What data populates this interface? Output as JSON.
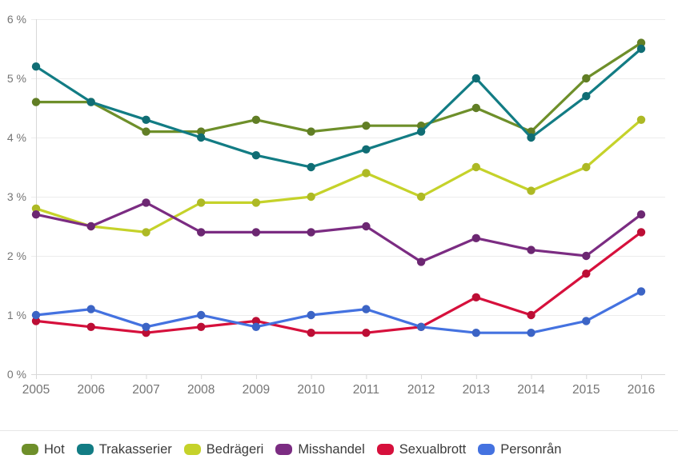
{
  "chart_data": {
    "type": "line",
    "x": [
      2005,
      2006,
      2007,
      2008,
      2009,
      2010,
      2011,
      2012,
      2013,
      2014,
      2015,
      2016
    ],
    "unit": "%",
    "ylim": [
      0,
      6
    ],
    "ytick_step": 1,
    "ytick_labels": [
      "0 %",
      "1 %",
      "2 %",
      "3 %",
      "4 %",
      "5 %",
      "6 %"
    ],
    "grid": "horizontal",
    "legend_position": "bottom",
    "series": [
      {
        "name": "Hot",
        "color": "#6E8F2A",
        "values": [
          4.6,
          4.6,
          4.1,
          4.1,
          4.3,
          4.1,
          4.2,
          4.2,
          4.5,
          4.1,
          5.0,
          5.6
        ]
      },
      {
        "name": "Trakasserier",
        "color": "#127C84",
        "values": [
          5.2,
          4.6,
          4.3,
          4.0,
          3.7,
          3.5,
          3.8,
          4.1,
          5.0,
          4.0,
          4.7,
          5.5
        ]
      },
      {
        "name": "Bedrägeri",
        "color": "#C5D22A",
        "values": [
          2.8,
          2.5,
          2.4,
          2.9,
          2.9,
          3.0,
          3.4,
          3.0,
          3.5,
          3.1,
          3.5,
          4.3
        ]
      },
      {
        "name": "Misshandel",
        "color": "#7B2C82",
        "values": [
          2.7,
          2.5,
          2.9,
          2.4,
          2.4,
          2.4,
          2.5,
          1.9,
          2.3,
          2.1,
          2.0,
          2.7
        ]
      },
      {
        "name": "Sexualbrott",
        "color": "#D6103C",
        "values": [
          0.9,
          0.8,
          0.7,
          0.8,
          0.9,
          0.7,
          0.7,
          0.8,
          1.3,
          1.0,
          1.7,
          2.4
        ]
      },
      {
        "name": "Personrån",
        "color": "#4472E0",
        "values": [
          1.0,
          1.1,
          0.8,
          1.0,
          0.8,
          1.0,
          1.1,
          0.8,
          0.7,
          0.7,
          0.9,
          1.4
        ]
      }
    ]
  },
  "colors": {
    "grid": "#ececec",
    "axis": "#d8d8d8",
    "tick_label": "#757575",
    "legend_text": "#3b3b3b",
    "divider": "#e7e7e7",
    "background": "#ffffff"
  }
}
